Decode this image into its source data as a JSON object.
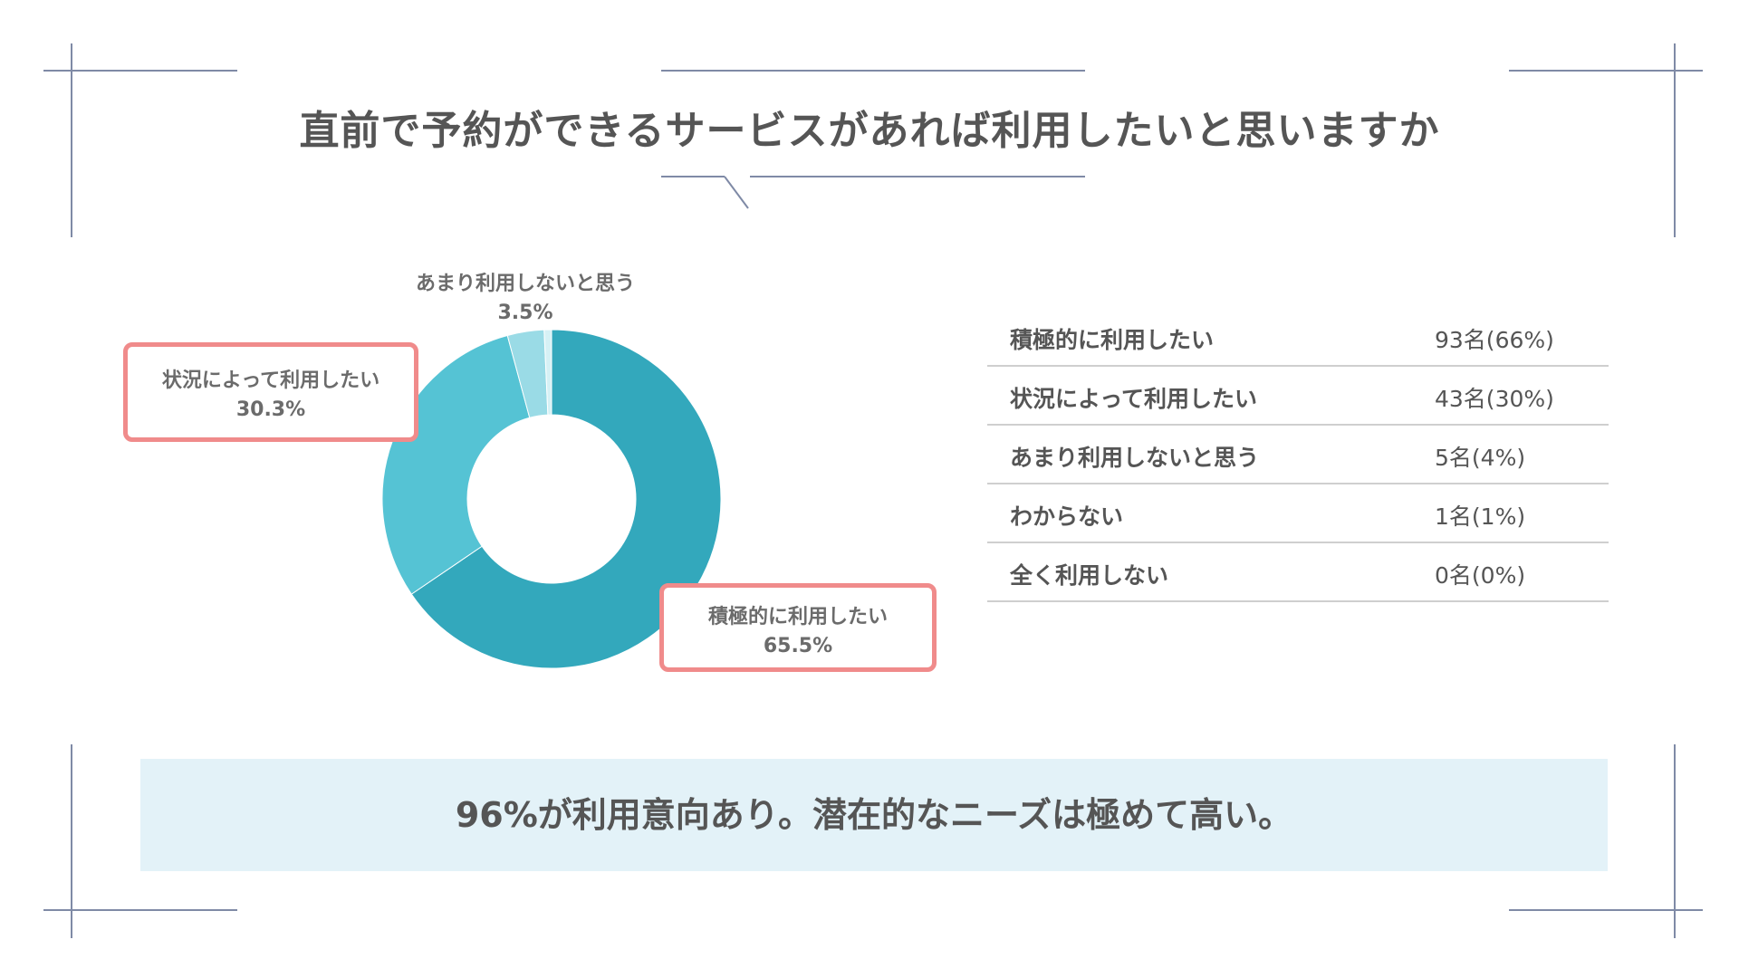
{
  "title": "直前で予約ができるサービスがあれば利用したいと思いますか",
  "colors": {
    "frame_line": "#7f8aa6",
    "callout_border": "#f08b8b",
    "slice_1": "#33a8bc",
    "slice_2": "#55c3d4",
    "slice_3": "#9adbe6",
    "conclusion_bg": "#e3f2f8"
  },
  "chart_data": {
    "type": "pie",
    "categories": [
      "積極的に利用したい",
      "状況によって利用したい",
      "あまり利用しないと思う",
      "わからない",
      "全く利用しない"
    ],
    "values": [
      65.5,
      30.3,
      3.5,
      0.7,
      0
    ],
    "labels": [
      {
        "name": "積極的に利用したい",
        "value": "65.5%"
      },
      {
        "name": "状況によって利用したい",
        "value": "30.3%"
      },
      {
        "name": "あまり利用しないと思う",
        "value": "3.5%"
      }
    ]
  },
  "table": {
    "rows": [
      {
        "label": "積極的に利用したい",
        "value": "93名(66%)"
      },
      {
        "label": "状況によって利用したい",
        "value": "43名(30%)"
      },
      {
        "label": "あまり利用しないと思う",
        "value": "5名(4%)"
      },
      {
        "label": "わからない",
        "value": "1名(1%)"
      },
      {
        "label": "全く利用しない",
        "value": "0名(0%)"
      }
    ]
  },
  "conclusion": "96%が利用意向あり。潜在的なニーズは極めて高い。"
}
